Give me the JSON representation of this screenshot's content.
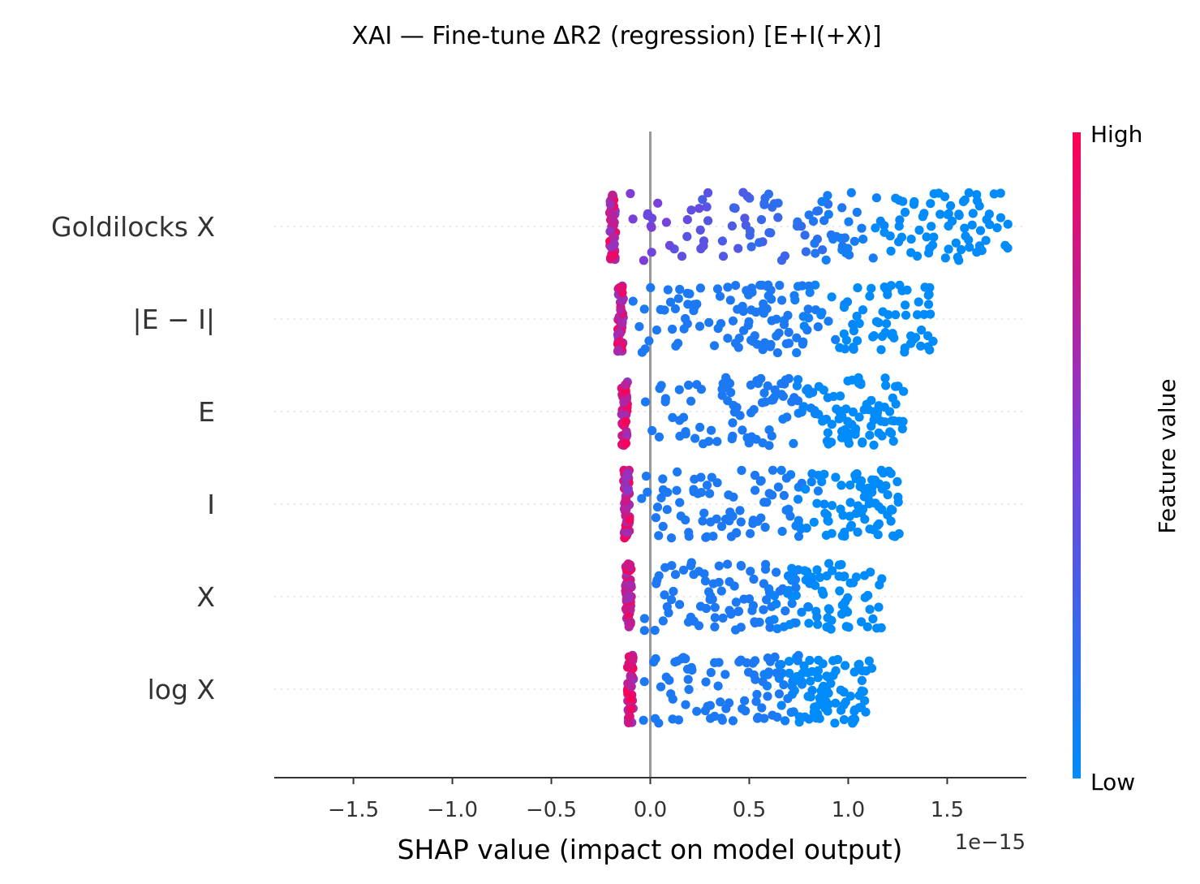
{
  "chart_data": {
    "type": "scatter",
    "subtype": "shap-beeswarm",
    "title": "XAI — Fine-tune ΔR2  (regression) [E+I(+X)]",
    "xlabel": "SHAP value (impact on model output)",
    "x_offset_label": "1e−15",
    "xlim": [
      -1.9,
      1.9
    ],
    "xticks": [
      -1.5,
      -1.0,
      -0.5,
      0.0,
      0.5,
      1.0,
      1.5
    ],
    "xtick_labels": [
      "−1.5",
      "−1.0",
      "−0.5",
      "0.0",
      "0.5",
      "1.0",
      "1.5"
    ],
    "zero_line": 0.0,
    "colorbar": {
      "title": "Feature value",
      "high_label": "High",
      "low_label": "Low",
      "low_color": "#008bfb",
      "high_color": "#ff0052"
    },
    "features": [
      {
        "name": "Goldilocks X",
        "points": 220,
        "x_min": -0.22,
        "x_max": 1.82,
        "high_cluster": -0.19,
        "low_direction": "positive"
      },
      {
        "name": "|E − I|",
        "points": 220,
        "x_min": -0.17,
        "x_max": 1.45,
        "high_cluster": -0.15,
        "low_direction": "positive"
      },
      {
        "name": "E",
        "points": 220,
        "x_min": -0.15,
        "x_max": 1.28,
        "high_cluster": -0.13,
        "low_direction": "positive"
      },
      {
        "name": "I",
        "points": 220,
        "x_min": -0.14,
        "x_max": 1.26,
        "high_cluster": -0.12,
        "low_direction": "positive"
      },
      {
        "name": "X",
        "points": 220,
        "x_min": -0.13,
        "x_max": 1.17,
        "high_cluster": -0.11,
        "low_direction": "positive"
      },
      {
        "name": "log X",
        "points": 220,
        "x_min": -0.12,
        "x_max": 1.12,
        "high_cluster": -0.1,
        "low_direction": "positive"
      }
    ]
  }
}
